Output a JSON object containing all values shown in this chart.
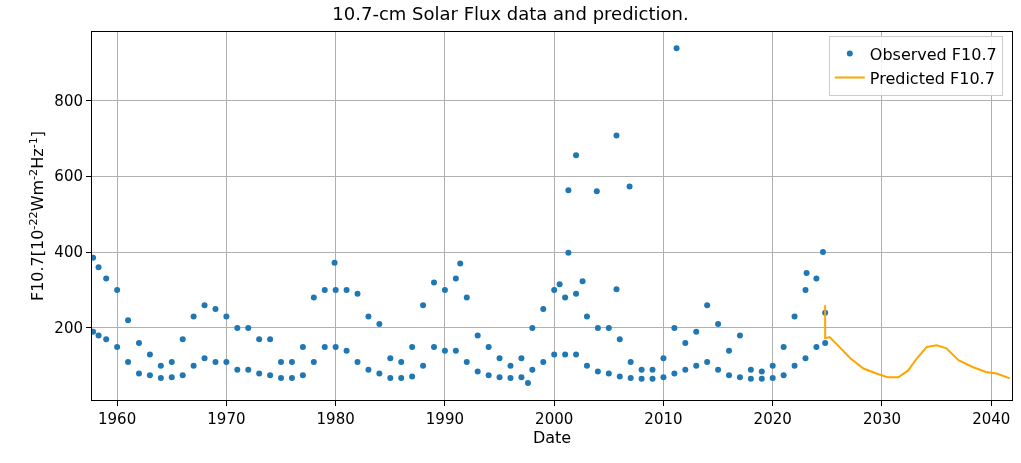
{
  "chart_data": {
    "type": "scatter",
    "title": "10.7-cm Solar Flux data and prediction.",
    "xlabel": "Date",
    "ylabel": "F10.7[10$^{-22}$Wm$^{-2}$Hz$^{-1}$]",
    "xlim": [
      1957.7,
      2041.9
    ],
    "xticks": [
      1960,
      1970,
      1980,
      1990,
      2000,
      2010,
      2020,
      2030,
      2040
    ],
    "ylim": [
      10,
      980
    ],
    "yticks": [
      200,
      400,
      600,
      800
    ],
    "grid": true,
    "legend": "top right",
    "series": [
      {
        "name": "Observed F10.7",
        "marker": "circle",
        "color": "#1f77b4",
        "x": [
          1957.8,
          1957.8,
          1958.3,
          1958.3,
          1959,
          1959,
          1960,
          1960,
          1961,
          1961,
          1962,
          1962,
          1963,
          1963,
          1964,
          1964,
          1965,
          1965,
          1966,
          1966,
          1967,
          1967,
          1968,
          1968,
          1969,
          1969,
          1970,
          1970,
          1971,
          1971,
          1972,
          1972,
          1973,
          1973,
          1974,
          1974,
          1975,
          1975,
          1976,
          1976,
          1977,
          1977,
          1978,
          1978,
          1979,
          1979,
          1979.9,
          1980,
          1980,
          1981,
          1981,
          1982,
          1982,
          1983,
          1983,
          1984,
          1984,
          1985,
          1985,
          1986,
          1986,
          1987,
          1987,
          1988,
          1988,
          1989,
          1989,
          1990,
          1990,
          1991,
          1991,
          1991.4,
          1992,
          1992,
          1993,
          1993,
          1994,
          1994,
          1995,
          1995,
          1996,
          1996,
          1997,
          1997,
          1997.6,
          1998,
          1998,
          1999,
          1999,
          2000,
          2000,
          2000.5,
          2001,
          2001,
          2001.3,
          2001.3,
          2002,
          2002.6,
          2002,
          2002,
          2003,
          2003,
          2003.9,
          2004,
          2004,
          2005,
          2005,
          2005.7,
          2005.7,
          2006,
          2006,
          2006.9,
          2007,
          2007,
          2008,
          2008,
          2009,
          2009,
          2010,
          2010,
          2011,
          2011,
          2011.2,
          2012,
          2012,
          2013,
          2013,
          2014,
          2014,
          2015,
          2015,
          2016,
          2016,
          2017,
          2017,
          2018,
          2018,
          2019,
          2019,
          2020,
          2020,
          2021,
          2021,
          2022,
          2022,
          2023,
          2023,
          2023.1,
          2024,
          2024,
          2024.6,
          2024.8,
          2024.8
        ],
        "values": [
          190,
          385,
          180,
          360,
          170,
          330,
          150,
          300,
          110,
          220,
          80,
          160,
          75,
          130,
          68,
          100,
          70,
          110,
          75,
          170,
          100,
          230,
          120,
          260,
          110,
          250,
          110,
          230,
          90,
          200,
          90,
          200,
          80,
          170,
          75,
          170,
          68,
          110,
          68,
          110,
          75,
          150,
          110,
          280,
          150,
          300,
          372,
          150,
          300,
          140,
          300,
          110,
          290,
          90,
          230,
          80,
          210,
          68,
          120,
          68,
          110,
          72,
          150,
          100,
          260,
          150,
          320,
          140,
          300,
          140,
          330,
          370,
          110,
          280,
          85,
          180,
          75,
          150,
          70,
          120,
          68,
          100,
          70,
          120,
          55,
          90,
          200,
          110,
          250,
          130,
          300,
          315,
          130,
          280,
          563,
          398,
          655,
          323,
          130,
          290,
          100,
          230,
          560,
          85,
          200,
          80,
          200,
          707,
          302,
          72,
          170,
          573,
          68,
          110,
          66,
          90,
          66,
          90,
          70,
          120,
          80,
          200,
          937,
          90,
          160,
          100,
          190,
          110,
          260,
          90,
          210,
          75,
          140,
          70,
          180,
          66,
          90,
          66,
          85,
          68,
          100,
          75,
          150,
          100,
          230,
          120,
          300,
          345,
          150,
          330,
          400,
          160,
          240
        ]
      },
      {
        "name": "Predicted F10.7",
        "type": "line",
        "marker": "none",
        "color": "#ffa500",
        "x": [
          2024.8,
          2024.8,
          2025.2,
          2026.1,
          2027.1,
          2028.3,
          2029.5,
          2030.5,
          2031.5,
          2032.4,
          2033.2,
          2034.1,
          2035.0,
          2035.9,
          2037.0,
          2038.3,
          2039.5,
          2040.5,
          2041.7
        ],
        "values": [
          260,
          173,
          176,
          150,
          120,
          93,
          80,
          70,
          70,
          88,
          120,
          150,
          154,
          146,
          115,
          97,
          84,
          80,
          67
        ]
      }
    ]
  }
}
